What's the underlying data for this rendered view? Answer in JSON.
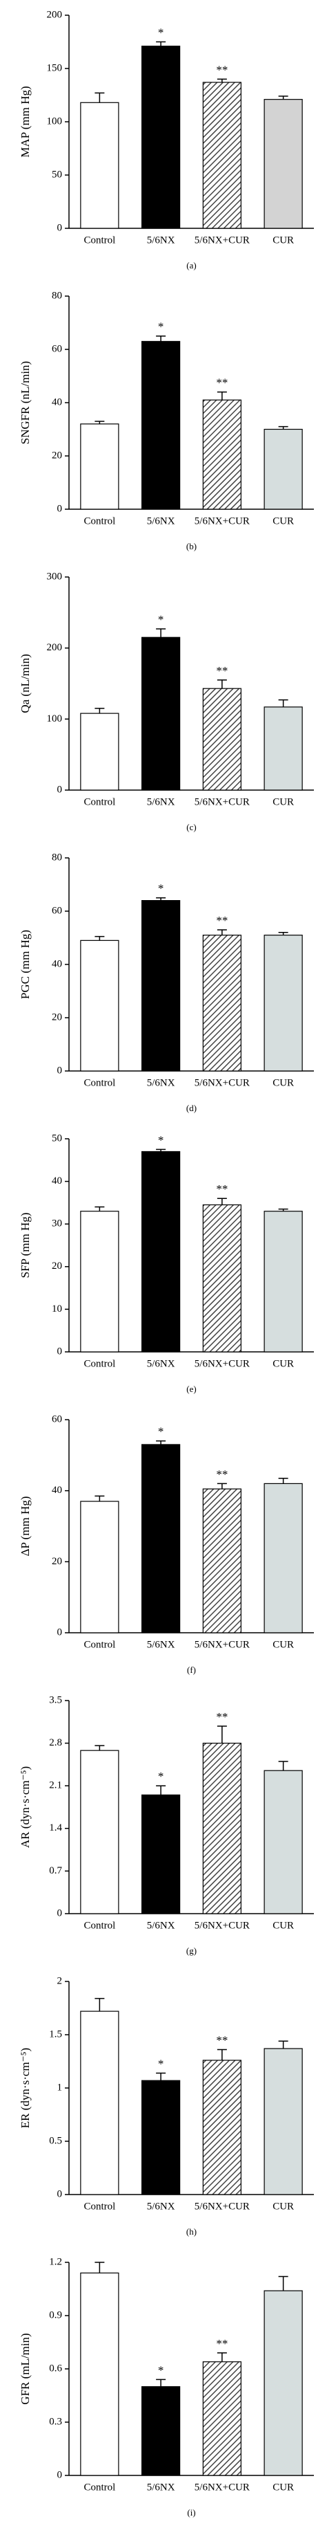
{
  "chart_data": [
    {
      "type": "bar",
      "label": "(a)",
      "ylabel": "MAP (mm Hg)",
      "categories": [
        "Control",
        "5/6NX",
        "5/6NX+CUR",
        "CUR"
      ],
      "values": [
        118,
        171,
        137,
        121
      ],
      "errors": [
        9,
        4,
        3,
        3
      ],
      "annotations": [
        null,
        "*",
        "**",
        null
      ],
      "colors": [
        "#ffffff",
        "#000000",
        "#555555",
        "#d3d3d3"
      ],
      "hatch": [
        false,
        false,
        true,
        false
      ],
      "ylim": [
        0,
        200
      ],
      "yticks": [
        0,
        50,
        100,
        150,
        200
      ]
    },
    {
      "type": "bar",
      "label": "(b)",
      "ylabel": "SNGFR (nL/min)",
      "categories": [
        "Control",
        "5/6NX",
        "5/6NX+CUR",
        "CUR"
      ],
      "values": [
        32,
        63,
        41,
        30
      ],
      "errors": [
        1,
        2,
        3,
        1
      ],
      "annotations": [
        null,
        "*",
        "**",
        null
      ],
      "colors": [
        "#ffffff",
        "#000000",
        "#555555",
        "#d6dede"
      ],
      "hatch": [
        false,
        false,
        true,
        false
      ],
      "ylim": [
        0,
        80
      ],
      "yticks": [
        0,
        20,
        40,
        60,
        80
      ]
    },
    {
      "type": "bar",
      "label": "(c)",
      "ylabel": "Qa (nL/min)",
      "categories": [
        "Control",
        "5/6NX",
        "5/6NX+CUR",
        "CUR"
      ],
      "values": [
        108,
        215,
        143,
        117
      ],
      "errors": [
        7,
        12,
        12,
        10
      ],
      "annotations": [
        null,
        "*",
        "**",
        null
      ],
      "colors": [
        "#ffffff",
        "#000000",
        "#555555",
        "#d6dede"
      ],
      "hatch": [
        false,
        false,
        true,
        false
      ],
      "ylim": [
        0,
        300
      ],
      "yticks": [
        0,
        100,
        200,
        300
      ]
    },
    {
      "type": "bar",
      "label": "(d)",
      "ylabel": "PGC (mm Hg)",
      "categories": [
        "Control",
        "5/6NX",
        "5/6NX+CUR",
        "CUR"
      ],
      "values": [
        49,
        64,
        51,
        51
      ],
      "errors": [
        1.5,
        1,
        2,
        1
      ],
      "annotations": [
        null,
        "*",
        "**",
        null
      ],
      "colors": [
        "#ffffff",
        "#000000",
        "#555555",
        "#d6dede"
      ],
      "hatch": [
        false,
        false,
        true,
        false
      ],
      "ylim": [
        0,
        80
      ],
      "yticks": [
        0,
        20,
        40,
        60,
        80
      ]
    },
    {
      "type": "bar",
      "label": "(e)",
      "ylabel": "SFP (mm Hg)",
      "categories": [
        "Control",
        "5/6NX",
        "5/6NX+CUR",
        "CUR"
      ],
      "values": [
        33,
        47,
        34.5,
        33
      ],
      "errors": [
        1,
        0.5,
        1.5,
        0.5
      ],
      "annotations": [
        null,
        "*",
        "**",
        null
      ],
      "colors": [
        "#ffffff",
        "#000000",
        "#555555",
        "#d6dede"
      ],
      "hatch": [
        false,
        false,
        true,
        false
      ],
      "ylim": [
        0,
        50
      ],
      "yticks": [
        0,
        10,
        20,
        30,
        40,
        50
      ]
    },
    {
      "type": "bar",
      "label": "(f)",
      "ylabel": "ΔP (mm Hg)",
      "categories": [
        "Control",
        "5/6NX",
        "5/6NX+CUR",
        "CUR"
      ],
      "values": [
        37,
        53,
        40.5,
        42
      ],
      "errors": [
        1.5,
        1,
        1.5,
        1.5
      ],
      "annotations": [
        null,
        "*",
        "**",
        null
      ],
      "colors": [
        "#ffffff",
        "#000000",
        "#555555",
        "#d6dede"
      ],
      "hatch": [
        false,
        false,
        true,
        false
      ],
      "ylim": [
        0,
        60
      ],
      "yticks": [
        0,
        20,
        40,
        60
      ]
    },
    {
      "type": "bar",
      "label": "(g)",
      "ylabel": "AR (dyn·s·cm⁻⁵)",
      "categories": [
        "Control",
        "5/6NX",
        "5/6NX+CUR",
        "CUR"
      ],
      "values": [
        2.68,
        1.95,
        2.8,
        2.35
      ],
      "errors": [
        0.08,
        0.15,
        0.28,
        0.15
      ],
      "annotations": [
        null,
        "*",
        "**",
        null
      ],
      "colors": [
        "#ffffff",
        "#000000",
        "#555555",
        "#d6dede"
      ],
      "hatch": [
        false,
        false,
        true,
        false
      ],
      "ylim": [
        0,
        3.5
      ],
      "yticks": [
        0,
        0.7,
        1.4,
        2.1,
        2.8,
        3.5
      ]
    },
    {
      "type": "bar",
      "label": "(h)",
      "ylabel": "ER (dyn·s·cm⁻⁵)",
      "categories": [
        "Control",
        "5/6NX",
        "5/6NX+CUR",
        "CUR"
      ],
      "values": [
        1.72,
        1.07,
        1.26,
        1.37
      ],
      "errors": [
        0.12,
        0.07,
        0.1,
        0.07
      ],
      "annotations": [
        null,
        "*",
        "**",
        null
      ],
      "colors": [
        "#ffffff",
        "#000000",
        "#555555",
        "#d6dede"
      ],
      "hatch": [
        false,
        false,
        true,
        false
      ],
      "ylim": [
        0,
        2
      ],
      "yticks": [
        0,
        0.5,
        1,
        1.5,
        2
      ]
    },
    {
      "type": "bar",
      "label": "(i)",
      "ylabel": "GFR (mL/min)",
      "categories": [
        "Control",
        "5/6NX",
        "5/6NX+CUR",
        "CUR"
      ],
      "values": [
        1.14,
        0.5,
        0.64,
        1.04
      ],
      "errors": [
        0.06,
        0.04,
        0.05,
        0.08
      ],
      "annotations": [
        null,
        "*",
        "**",
        null
      ],
      "colors": [
        "#ffffff",
        "#000000",
        "#555555",
        "#d6dede"
      ],
      "hatch": [
        false,
        false,
        true,
        false
      ],
      "ylim": [
        0,
        1.2
      ],
      "yticks": [
        0,
        0.3,
        0.6,
        0.9,
        1.2
      ]
    }
  ]
}
